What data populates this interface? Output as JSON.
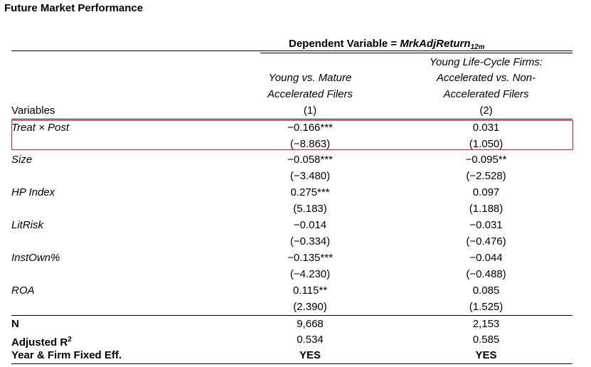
{
  "title": "Future Market Performance",
  "dep_var": {
    "prefix": "Dependent Variable = ",
    "name": "MrkAdjReturn",
    "subscript": "12m"
  },
  "col_headers": {
    "variables_label": "Variables",
    "col1_line1": "Young vs. Mature",
    "col1_line2": "Accelerated Filers",
    "col1_num": "(1)",
    "col2_line1": "Young Life-Cycle Firms:",
    "col2_line2": "Accelerated vs. Non-",
    "col2_line3": "Accelerated Filers",
    "col2_num": "(2)"
  },
  "rows": [
    {
      "label": "Treat × Post",
      "c1": "−0.166***",
      "c1_t": "(−8.863)",
      "c2": "0.031",
      "c2_t": "(1.050)"
    },
    {
      "label": "Size",
      "c1": "−0.058***",
      "c1_t": "(−3.480)",
      "c2": "−0.095**",
      "c2_t": "(−2.528)"
    },
    {
      "label": "HP Index",
      "c1": "0.275***",
      "c1_t": "(5.183)",
      "c2": "0.097",
      "c2_t": "(1.188)"
    },
    {
      "label": "LitRisk",
      "c1": "−0.014",
      "c1_t": "(−0.334)",
      "c2": "−0.031",
      "c2_t": "(−0.476)"
    },
    {
      "label": "InstOwn%",
      "c1": "−0.135***",
      "c1_t": "(−4.230)",
      "c2": "−0.044",
      "c2_t": "(−0.488)"
    },
    {
      "label": "ROA",
      "c1": "0.115**",
      "c1_t": "(2.390)",
      "c2": "0.085",
      "c2_t": "(1.525)"
    }
  ],
  "footer": {
    "n_label": "N",
    "n_c1": "9,668",
    "n_c2": "2,153",
    "r2_label": "Adjusted R",
    "r2_sup": "2",
    "r2_c1": "0.534",
    "r2_c2": "0.585",
    "fe_label": "Year & Firm Fixed Eff.",
    "fe_c1": "YES",
    "fe_c2": "YES"
  },
  "highlight_color": "#e02020"
}
